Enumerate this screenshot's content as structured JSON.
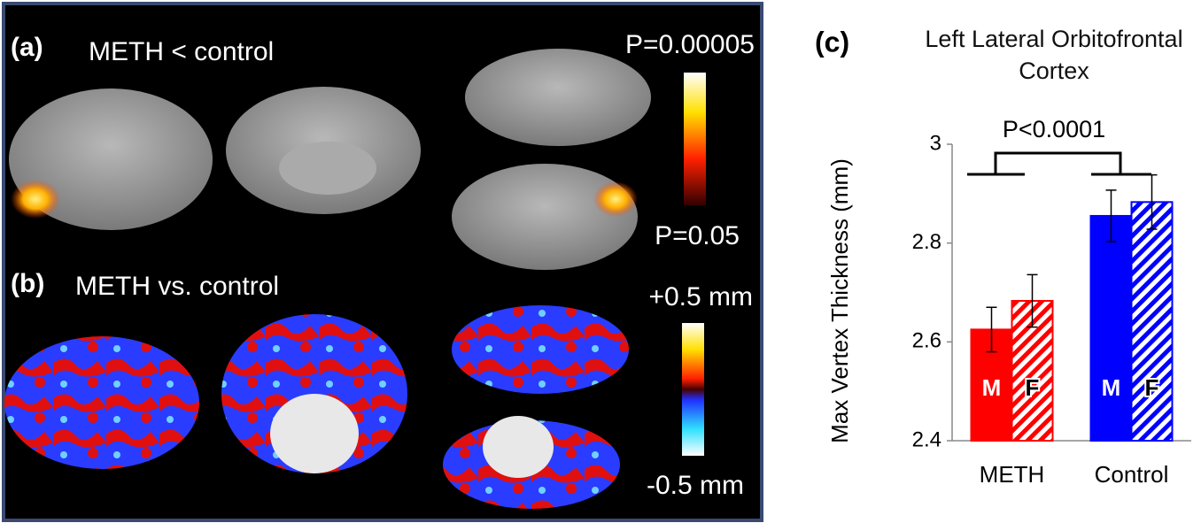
{
  "panel_a": {
    "label": "(a)",
    "title": "METH < control",
    "scale_top": "P=0.00005",
    "scale_bottom": "P=0.05"
  },
  "panel_b": {
    "label": "(b)",
    "title": "METH vs. control",
    "scale_top": "+0.5 mm",
    "scale_bottom": "-0.5 mm"
  },
  "chart_data": {
    "type": "bar",
    "panel_label": "(c)",
    "title": "Left Lateral Orbitofrontal Cortex",
    "ylabel": "Max Vertex Thickness (mm)",
    "annotation": "P<0.0001",
    "categories": [
      "METH",
      "Control"
    ],
    "series": [
      {
        "name": "M",
        "colors": [
          "#ff0000",
          "#0000ff"
        ],
        "hatched": false,
        "values": [
          2.625,
          2.855
        ],
        "errors": [
          0.045,
          0.052
        ]
      },
      {
        "name": "F",
        "colors": [
          "#ff0000",
          "#0000ff"
        ],
        "hatched": true,
        "values": [
          2.683,
          2.883
        ],
        "errors": [
          0.053,
          0.055
        ]
      }
    ],
    "ylim": [
      2.4,
      3.0
    ],
    "yticks": [
      2.4,
      2.6,
      2.8,
      3
    ],
    "grid": false
  }
}
